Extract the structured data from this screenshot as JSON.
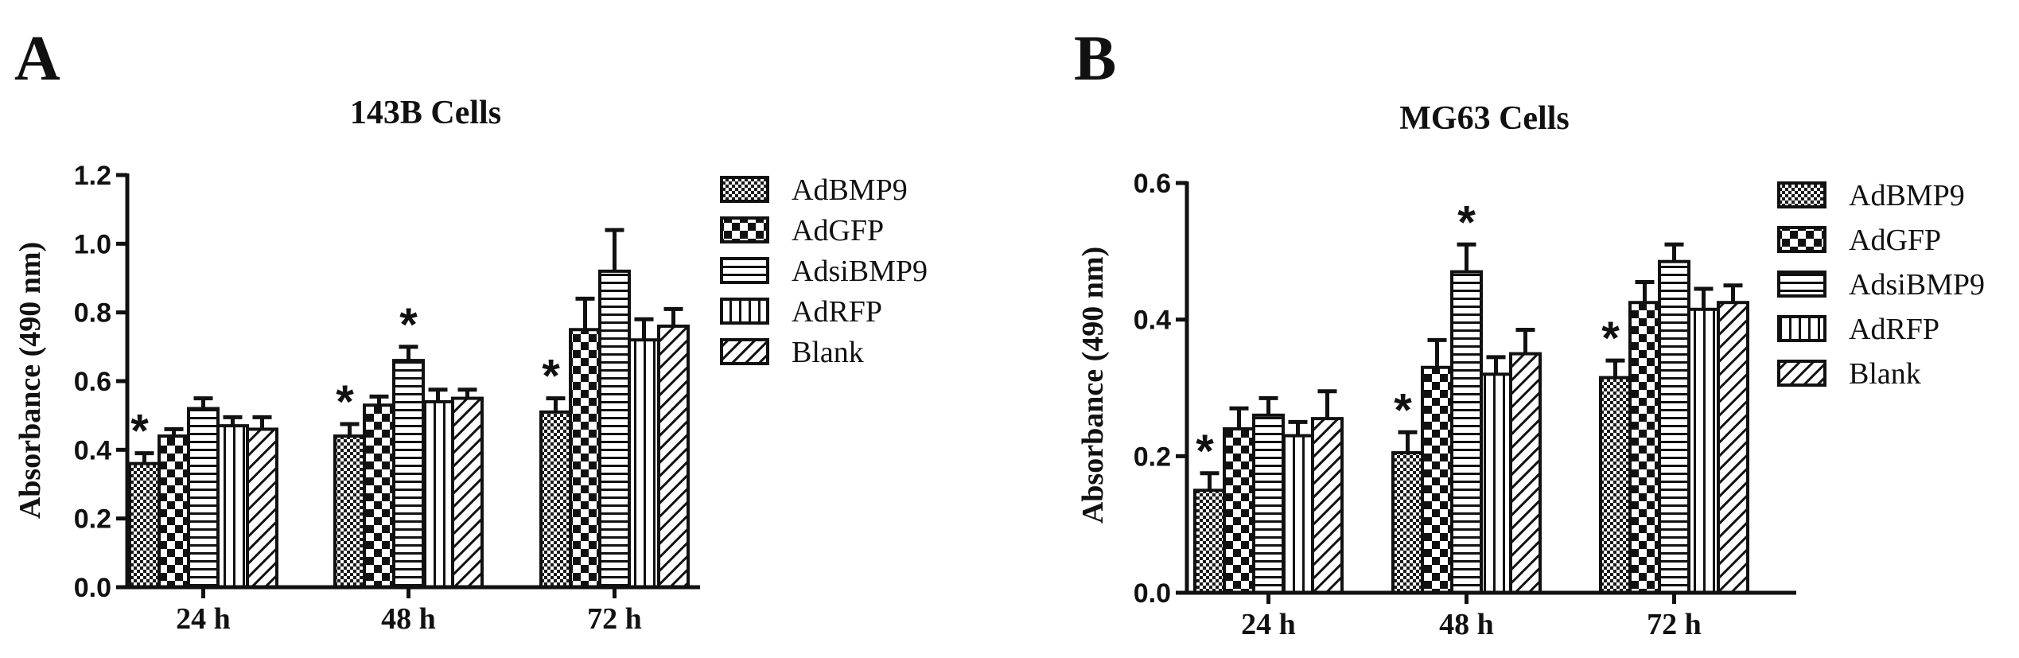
{
  "panels": [
    {
      "label": "A"
    },
    {
      "label": "B"
    }
  ],
  "legend": {
    "entries": [
      "AdBMP9",
      "AdGFP",
      "AdsiBMP9",
      "AdRFP",
      "Blank"
    ],
    "placement": "right"
  },
  "chart_data": [
    {
      "type": "bar",
      "title": "143B Cells",
      "xlabel": "",
      "ylabel": "Absorbance (490 nm)",
      "ylim": [
        0,
        1.2
      ],
      "yticks": [
        "0.0",
        "0.2",
        "0.4",
        "0.6",
        "0.8",
        "1.0",
        "1.2"
      ],
      "yticks_values": [
        0,
        0.2,
        0.4,
        0.6,
        0.8,
        1.0,
        1.2
      ],
      "categories": [
        "24 h",
        "48 h",
        "72 h"
      ],
      "grid": false,
      "series": [
        {
          "name": "AdBMP9",
          "values": [
            0.36,
            0.44,
            0.51
          ],
          "errors": [
            0.03,
            0.035,
            0.04
          ]
        },
        {
          "name": "AdGFP",
          "values": [
            0.44,
            0.53,
            0.75
          ],
          "errors": [
            0.02,
            0.025,
            0.09
          ]
        },
        {
          "name": "AdsiBMP9",
          "values": [
            0.52,
            0.66,
            0.92
          ],
          "errors": [
            0.03,
            0.04,
            0.12
          ]
        },
        {
          "name": "AdRFP",
          "values": [
            0.47,
            0.54,
            0.72
          ],
          "errors": [
            0.025,
            0.035,
            0.06
          ]
        },
        {
          "name": "Blank",
          "values": [
            0.46,
            0.55,
            0.76
          ],
          "errors": [
            0.035,
            0.025,
            0.05
          ]
        }
      ],
      "significance": [
        {
          "category": "24 h",
          "series": "AdBMP9",
          "mark": "*"
        },
        {
          "category": "48 h",
          "series": "AdBMP9",
          "mark": "*"
        },
        {
          "category": "48 h",
          "series": "AdsiBMP9",
          "mark": "*"
        },
        {
          "category": "72 h",
          "series": "AdBMP9",
          "mark": "*"
        }
      ]
    },
    {
      "type": "bar",
      "title": "MG63 Cells",
      "xlabel": "",
      "ylabel": "Absorbance (490 nm)",
      "ylim": [
        0,
        0.6
      ],
      "yticks": [
        "0.0",
        "0.2",
        "0.4",
        "0.6"
      ],
      "yticks_values": [
        0,
        0.2,
        0.4,
        0.6
      ],
      "categories": [
        "24 h",
        "48 h",
        "72 h"
      ],
      "grid": false,
      "series": [
        {
          "name": "AdBMP9",
          "values": [
            0.15,
            0.205,
            0.315
          ],
          "errors": [
            0.025,
            0.03,
            0.025
          ]
        },
        {
          "name": "AdGFP",
          "values": [
            0.24,
            0.33,
            0.425
          ],
          "errors": [
            0.03,
            0.04,
            0.03
          ]
        },
        {
          "name": "AdsiBMP9",
          "values": [
            0.26,
            0.47,
            0.485
          ],
          "errors": [
            0.025,
            0.04,
            0.025
          ]
        },
        {
          "name": "AdRFP",
          "values": [
            0.23,
            0.32,
            0.415
          ],
          "errors": [
            0.02,
            0.025,
            0.03
          ]
        },
        {
          "name": "Blank",
          "values": [
            0.255,
            0.35,
            0.425
          ],
          "errors": [
            0.04,
            0.035,
            0.025
          ]
        }
      ],
      "significance": [
        {
          "category": "24 h",
          "series": "AdBMP9",
          "mark": "*"
        },
        {
          "category": "48 h",
          "series": "AdBMP9",
          "mark": "*"
        },
        {
          "category": "48 h",
          "series": "AdsiBMP9",
          "mark": "*"
        },
        {
          "category": "72 h",
          "series": "AdBMP9",
          "mark": "*"
        }
      ]
    }
  ]
}
